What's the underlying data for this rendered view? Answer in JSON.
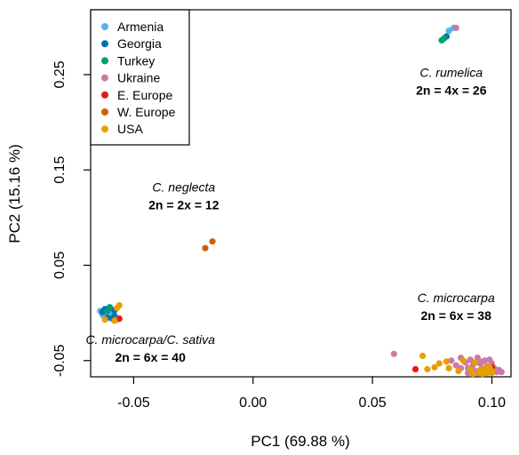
{
  "chart_data": {
    "type": "scatter",
    "xlabel": "PC1 (69.88 %)",
    "ylabel": "PC2 (15.16 %)",
    "xlim": [
      -0.068,
      0.108
    ],
    "ylim": [
      -0.067,
      0.318
    ],
    "x_ticks": [
      "-0.05",
      "0.00",
      "0.05",
      "0.10"
    ],
    "y_ticks": [
      "-0.05",
      "0.05",
      "0.15",
      "0.25"
    ],
    "legend_position": "top-left",
    "legend": [
      {
        "name": "Armenia",
        "color": "#56B4E9"
      },
      {
        "name": "Georgia",
        "color": "#0072B2"
      },
      {
        "name": "Turkey",
        "color": "#009E73"
      },
      {
        "name": "Ukraine",
        "color": "#CC79A7"
      },
      {
        "name": "E. Europe",
        "color": "#E41A1C"
      },
      {
        "name": "W. Europe",
        "color": "#D55E00"
      },
      {
        "name": "USA",
        "color": "#E69F00"
      }
    ],
    "annotations": [
      {
        "species": "C. rumelica",
        "ploidy": "2n = 4x = 26",
        "x": 0.083,
        "y": 0.24
      },
      {
        "species": "C. neglecta",
        "ploidy": "2n = 2x = 12",
        "x": -0.029,
        "y": 0.12
      },
      {
        "species": "C. microcarpa",
        "ploidy": "2n = 6x = 38",
        "x": 0.085,
        "y": 0.004
      },
      {
        "species": "C. microcarpa/C. sativa",
        "ploidy": "2n = 6x = 40",
        "x": -0.043,
        "y": -0.04
      }
    ],
    "series": [
      {
        "name": "Armenia",
        "color": "#56B4E9",
        "points": [
          [
            -0.062,
            0.0
          ],
          [
            -0.063,
            -0.001
          ],
          [
            -0.061,
            -0.003
          ],
          [
            -0.062,
            -0.006
          ],
          [
            -0.06,
            -0.004
          ],
          [
            -0.064,
            0.002
          ],
          [
            -0.061,
            0.004
          ],
          [
            -0.063,
            -0.002
          ],
          [
            -0.059,
            -0.001
          ],
          [
            -0.062,
            0.003
          ],
          [
            -0.06,
            0.001
          ],
          [
            0.084,
            0.299
          ],
          [
            0.082,
            0.296
          ]
        ]
      },
      {
        "name": "Georgia",
        "color": "#0072B2",
        "points": [
          [
            -0.06,
            0.005
          ],
          [
            -0.058,
            0.003
          ],
          [
            -0.061,
            -0.005
          ],
          [
            -0.059,
            -0.006
          ],
          [
            -0.062,
            0.004
          ],
          [
            -0.058,
            -0.003
          ],
          [
            -0.063,
            0.001
          ],
          [
            0.081,
            0.29
          ]
        ]
      },
      {
        "name": "Turkey",
        "color": "#009E73",
        "points": [
          [
            -0.061,
            0.002
          ],
          [
            -0.06,
            0.006
          ],
          [
            0.079,
            0.286
          ],
          [
            0.08,
            0.288
          ]
        ]
      },
      {
        "name": "Ukraine",
        "color": "#CC79A7",
        "points": [
          [
            -0.057,
            -0.007
          ],
          [
            0.085,
            0.299
          ],
          [
            0.059,
            -0.043
          ],
          [
            0.083,
            -0.05
          ],
          [
            0.085,
            -0.055
          ],
          [
            0.087,
            -0.047
          ],
          [
            0.089,
            -0.052
          ],
          [
            0.09,
            -0.058
          ],
          [
            0.091,
            -0.049
          ],
          [
            0.092,
            -0.055
          ],
          [
            0.093,
            -0.061
          ],
          [
            0.094,
            -0.047
          ],
          [
            0.095,
            -0.053
          ],
          [
            0.096,
            -0.058
          ],
          [
            0.097,
            -0.05
          ],
          [
            0.098,
            -0.056
          ],
          [
            0.099,
            -0.061
          ],
          [
            0.1,
            -0.053
          ],
          [
            0.101,
            -0.058
          ],
          [
            0.102,
            -0.062
          ],
          [
            0.103,
            -0.06
          ],
          [
            0.104,
            -0.062
          ],
          [
            0.099,
            -0.049
          ],
          [
            0.096,
            -0.051
          ],
          [
            0.094,
            -0.063
          ],
          [
            0.09,
            -0.063
          ],
          [
            0.087,
            -0.058
          ]
        ]
      },
      {
        "name": "E. Europe",
        "color": "#E41A1C",
        "points": [
          [
            -0.056,
            -0.006
          ],
          [
            -0.058,
            -0.008
          ],
          [
            0.068,
            -0.059
          ],
          [
            0.1,
            -0.057
          ]
        ]
      },
      {
        "name": "W. Europe",
        "color": "#D55E00",
        "points": [
          [
            -0.02,
            0.068
          ],
          [
            -0.017,
            0.075
          ]
        ]
      },
      {
        "name": "USA",
        "color": "#E69F00",
        "points": [
          [
            -0.056,
            0.008
          ],
          [
            -0.058,
            -0.008
          ],
          [
            -0.062,
            -0.007
          ],
          [
            -0.057,
            0.005
          ],
          [
            0.071,
            -0.045
          ],
          [
            0.073,
            -0.059
          ],
          [
            0.076,
            -0.057
          ],
          [
            0.078,
            -0.053
          ],
          [
            0.081,
            -0.051
          ],
          [
            0.082,
            -0.058
          ],
          [
            0.086,
            -0.061
          ],
          [
            0.088,
            -0.05
          ],
          [
            0.091,
            -0.059
          ],
          [
            0.092,
            -0.064
          ],
          [
            0.093,
            -0.052
          ],
          [
            0.095,
            -0.06
          ],
          [
            0.096,
            -0.064
          ],
          [
            0.097,
            -0.059
          ],
          [
            0.098,
            -0.06
          ],
          [
            0.099,
            -0.057
          ],
          [
            0.1,
            -0.061
          ],
          [
            0.1,
            -0.063
          ],
          [
            0.098,
            -0.063
          ],
          [
            0.097,
            -0.058
          ],
          [
            0.095,
            -0.063
          ]
        ]
      }
    ]
  }
}
